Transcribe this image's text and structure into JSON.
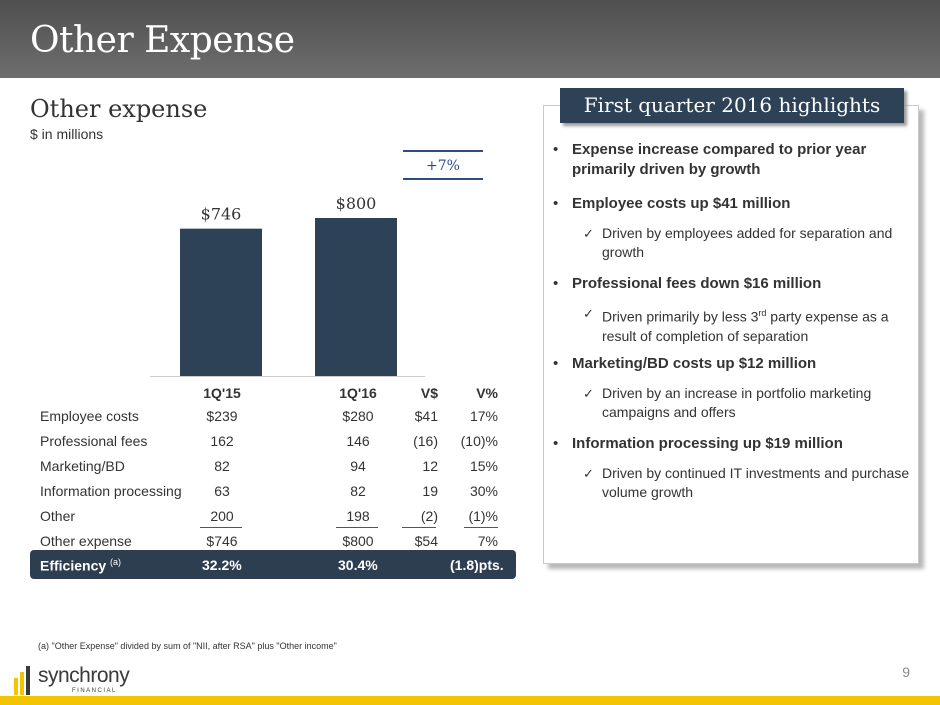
{
  "page": {
    "title": "Other Expense",
    "page_number": "9"
  },
  "section": {
    "title": "Other expense",
    "subtitle": "$ in millions"
  },
  "chart_data": {
    "type": "bar",
    "title": "Other expense",
    "ylabel": "$ in millions",
    "categories": [
      "1Q'15",
      "1Q'16"
    ],
    "values": [
      746,
      800
    ],
    "data_labels": [
      "$746",
      "$800"
    ],
    "ylim": [
      0,
      800
    ],
    "change_label": "+7%",
    "bar_color": "#2d4256"
  },
  "table": {
    "headers": [
      "",
      "1Q'15",
      "1Q'16",
      "V$",
      "V%"
    ],
    "rows": [
      [
        "Employee costs",
        "$239",
        "$280",
        "$41",
        "17%"
      ],
      [
        "Professional fees",
        "162",
        "146",
        "(16)",
        "(10)%"
      ],
      [
        "Marketing/BD",
        "82",
        "94",
        "12",
        "15%"
      ],
      [
        "Information processing",
        "63",
        "82",
        "19",
        "30%"
      ],
      [
        "Other",
        "200",
        "198",
        "(2)",
        "(1)%"
      ],
      [
        "Other expense",
        "$746",
        "$800",
        "$54",
        "7%"
      ]
    ],
    "efficiency": {
      "label": "Efficiency",
      "note": "(a)",
      "q1_15": "32.2%",
      "q1_16": "30.4%",
      "change": "(1.8)pts."
    }
  },
  "highlights": {
    "title": "First quarter 2016 highlights",
    "items": [
      {
        "bullet": "•",
        "text": "Expense increase compared to prior year primarily driven by growth"
      },
      {
        "bullet": "•",
        "text": "Employee costs up $41 million"
      },
      {
        "check": "✓",
        "text": "Driven by employees added for separation and growth"
      },
      {
        "bullet": "•",
        "text": "Professional fees down $16 million"
      },
      {
        "check": "✓",
        "text_a": "Driven primarily by less 3",
        "sup": "rd",
        "text_b": " party expense as a result of completion of separation"
      },
      {
        "bullet": "•",
        "text": "Marketing/BD costs up $12 million"
      },
      {
        "check": "✓",
        "text": "Driven by an increase in portfolio marketing campaigns and offers"
      },
      {
        "bullet": "•",
        "text": "Information processing up $19 million"
      },
      {
        "check": "✓",
        "text": "Driven by continued IT investments and purchase volume growth"
      }
    ]
  },
  "footnote": "(a) \"Other Expense\" divided by sum of \"NII, after RSA\" plus \"Other income\"",
  "logo": {
    "name": "synchrony",
    "sub": "FINANCIAL"
  },
  "colors": {
    "header": "#5a5a5a",
    "accent": "#2d4256",
    "footer": "#f2c500",
    "change_line": "#2d4a8a"
  }
}
